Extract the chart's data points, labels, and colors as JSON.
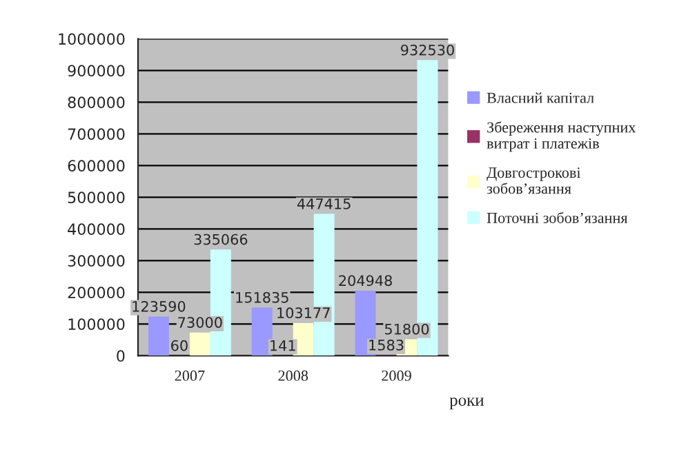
{
  "chart_data": {
    "type": "bar",
    "categories": [
      "2007",
      "2008",
      "2009"
    ],
    "xlabel": "роки",
    "series": [
      {
        "name": "Власний капітал",
        "color": "#9999ff",
        "values": [
          123590,
          151835,
          204948
        ]
      },
      {
        "name": "Збереження наступних витрат і платежів",
        "color": "#993366",
        "values": [
          60,
          141,
          1583
        ]
      },
      {
        "name": "Довгострокові зобов’язання",
        "color": "#ffffcc",
        "values": [
          73000,
          103177,
          51800
        ]
      },
      {
        "name": "Поточні зобов’язання",
        "color": "#ccffff",
        "values": [
          335066,
          447415,
          932530
        ]
      }
    ],
    "ylim": [
      0,
      1000000
    ],
    "yticks": [
      0,
      100000,
      200000,
      300000,
      400000,
      500000,
      600000,
      700000,
      800000,
      900000,
      1000000
    ],
    "grid": "y",
    "legend": "right",
    "data_labels": true
  }
}
